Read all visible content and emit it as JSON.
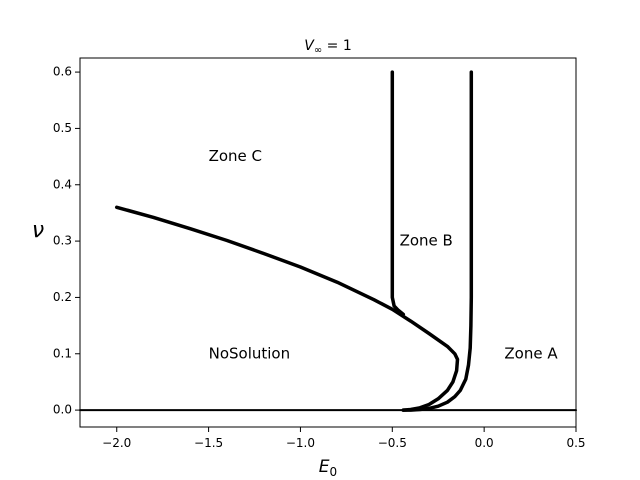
{
  "chart_data": {
    "type": "line",
    "title_main": "V",
    "title_sub": "∞",
    "title_rest": " = 1",
    "xlabel_main": "E",
    "xlabel_sub": "0",
    "ylabel": "ν",
    "xlim": [
      -2.2,
      0.5
    ],
    "ylim": [
      -0.03,
      0.625
    ],
    "x_ticks": [
      -2.0,
      -1.5,
      -1.0,
      -0.5,
      0.0,
      0.5
    ],
    "x_tick_labels": [
      "−2.0",
      "−1.5",
      "−1.0",
      "−0.5",
      "0.0",
      "0.5"
    ],
    "y_ticks": [
      0.0,
      0.1,
      0.2,
      0.3,
      0.4,
      0.5,
      0.6
    ],
    "y_tick_labels": [
      "0.0",
      "0.1",
      "0.2",
      "0.3",
      "0.4",
      "0.5",
      "0.6"
    ],
    "grid": false,
    "series": [
      {
        "x": [
          -2.2,
          0.5
        ],
        "y": [
          0.0,
          0.0
        ]
      },
      {
        "x": [
          -2.0,
          -1.8,
          -1.6,
          -1.4,
          -1.2,
          -1.0,
          -0.8,
          -0.6,
          -0.5,
          -0.4,
          -0.3,
          -0.2,
          -0.16,
          -0.145,
          -0.15,
          -0.17,
          -0.2,
          -0.25,
          -0.3,
          -0.35,
          -0.4,
          -0.44
        ],
        "y": [
          0.36,
          0.342,
          0.322,
          0.301,
          0.278,
          0.254,
          0.227,
          0.196,
          0.179,
          0.158,
          0.136,
          0.113,
          0.1,
          0.09,
          0.07,
          0.05,
          0.035,
          0.02,
          0.01,
          0.004,
          0.001,
          0.0
        ]
      },
      {
        "x": [
          -0.5,
          -0.5,
          -0.5,
          -0.49,
          -0.47,
          -0.44
        ],
        "y": [
          0.6,
          0.3,
          0.2,
          0.185,
          0.178,
          0.17
        ]
      },
      {
        "x": [
          -0.07,
          -0.07,
          -0.07,
          -0.072,
          -0.076,
          -0.085,
          -0.1,
          -0.13,
          -0.16,
          -0.2,
          -0.25,
          -0.3,
          -0.35,
          -0.4,
          -0.44
        ],
        "y": [
          0.6,
          0.3,
          0.2,
          0.15,
          0.11,
          0.08,
          0.055,
          0.035,
          0.024,
          0.014,
          0.007,
          0.003,
          0.001,
          0.0,
          0.0
        ]
      }
    ],
    "annotations": [
      {
        "text": "Zone C",
        "x": -1.5,
        "y": 0.45
      },
      {
        "text": "Zone B",
        "x": -0.46,
        "y": 0.3
      },
      {
        "text": "NoSolution",
        "x": -1.5,
        "y": 0.1
      },
      {
        "text": "Zone A",
        "x": 0.11,
        "y": 0.1
      }
    ]
  }
}
